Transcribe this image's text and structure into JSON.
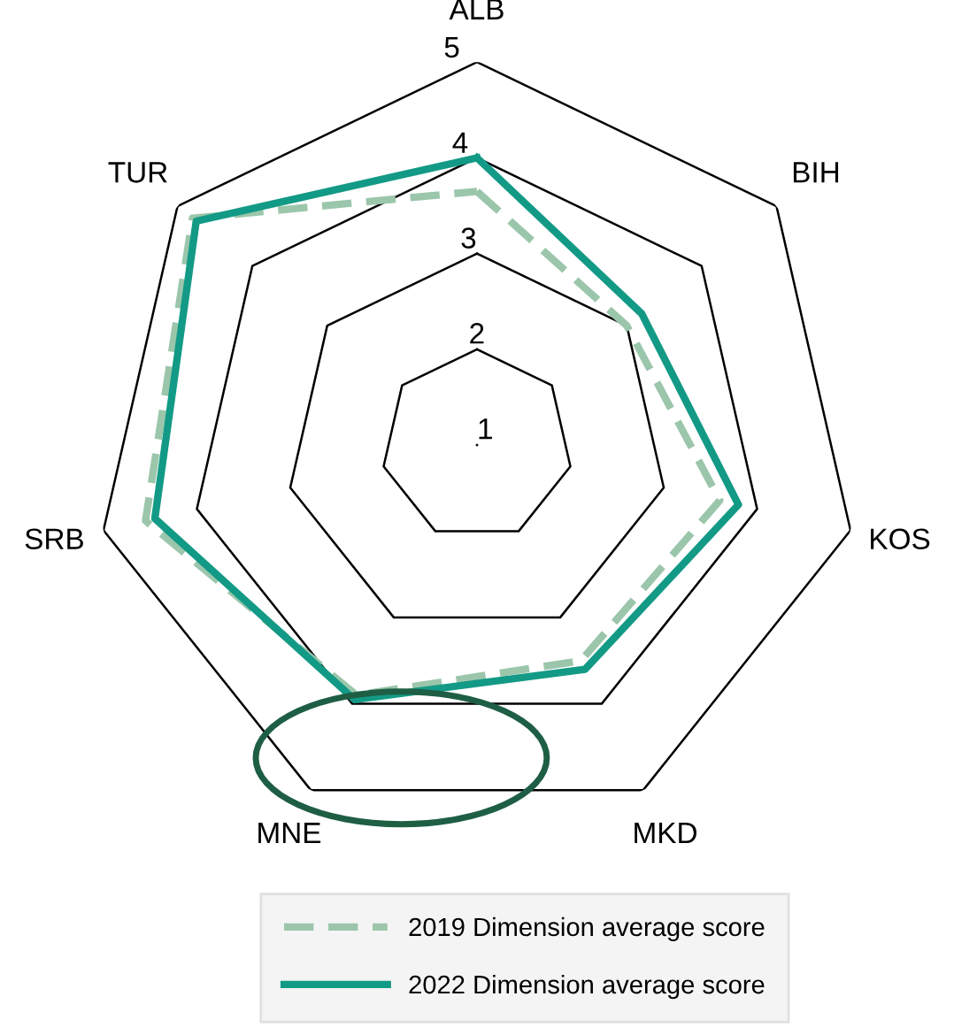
{
  "chart_data": {
    "type": "radar",
    "categories": [
      "ALB",
      "BIH",
      "KOS",
      "MKD",
      "MNE",
      "SRB",
      "TUR"
    ],
    "ylim": [
      1,
      5
    ],
    "yticks": [
      1,
      2,
      3,
      4,
      5
    ],
    "series": [
      {
        "name": "2019 Dimension average score",
        "color": "#9bc6ab",
        "line_style": "dashed",
        "values": [
          3.65,
          3.0,
          3.6,
          3.5,
          3.9,
          4.55,
          4.8
        ]
      },
      {
        "name": "2022 Dimension average score",
        "color": "#139a86",
        "line_style": "solid",
        "values": [
          4.0,
          3.2,
          3.8,
          3.6,
          3.95,
          4.45,
          4.75
        ]
      }
    ],
    "legend": "bottom",
    "marker": "none",
    "grid": true
  }
}
